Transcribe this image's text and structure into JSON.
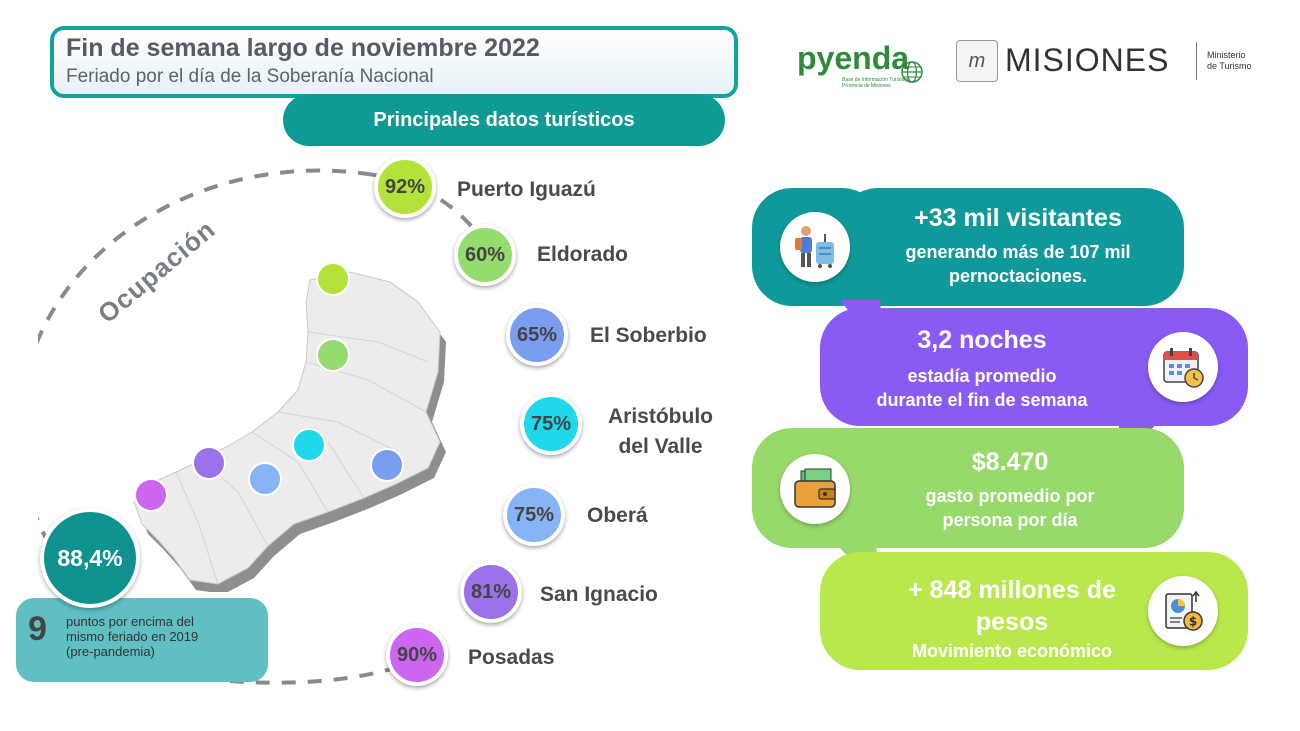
{
  "header": {
    "title": "Fin de semana largo de noviembre 2022",
    "subtitle": "Feriado por el día de la Soberanía Nacional",
    "section": "Principales datos turísticos"
  },
  "logos": {
    "pyenda": "pyenda",
    "pyenda_tagline_1": "Base de Información Turística",
    "pyenda_tagline_2": "Provincia de Misiones",
    "misiones": "MISIONES",
    "ministerio_1": "Ministerio",
    "ministerio_2": "de Turismo"
  },
  "occupation": {
    "label": "Ocupación",
    "total": "88,4%",
    "points": "9",
    "points_text_1": "puntos por encima del",
    "points_text_2": "mismo feriado en 2019",
    "points_text_3": "(pre-pandemia)"
  },
  "cities": [
    {
      "value": "92%",
      "name": "Puerto Iguazú",
      "color": "#b5e23a"
    },
    {
      "value": "60%",
      "name": "Eldorado",
      "color": "#96db70"
    },
    {
      "value": "65%",
      "name": "El Soberbio",
      "color": "#7b9df0"
    },
    {
      "value": "75%",
      "name_1": "Aristóbulo",
      "name_2": "del Valle",
      "color": "#1fd8ea"
    },
    {
      "value": "75%",
      "name": "Oberá",
      "color": "#86b4f5"
    },
    {
      "value": "81%",
      "name": "San Ignacio",
      "color": "#9b72ea"
    },
    {
      "value": "90%",
      "name": "Posadas",
      "color": "#cc66f0"
    }
  ],
  "panels": {
    "visitors_title": "+33 mil visitantes",
    "visitors_sub_1": "generando más de 107 mil",
    "visitors_sub_2": "pernoctaciones.",
    "nights_title": "3,2 noches",
    "nights_sub_1": "estadía promedio",
    "nights_sub_2": "durante el fin de semana",
    "spend_title": "$8.470",
    "spend_sub_1": "gasto promedio por",
    "spend_sub_2": "persona por día",
    "movement_title_1": "+ 848 millones de",
    "movement_title_2": "pesos",
    "movement_sub": "Movimiento económico"
  },
  "colors": {
    "teal": "#10999a",
    "purple": "#8a5bf2",
    "green": "#97d96b",
    "lime": "#b9e84c"
  }
}
